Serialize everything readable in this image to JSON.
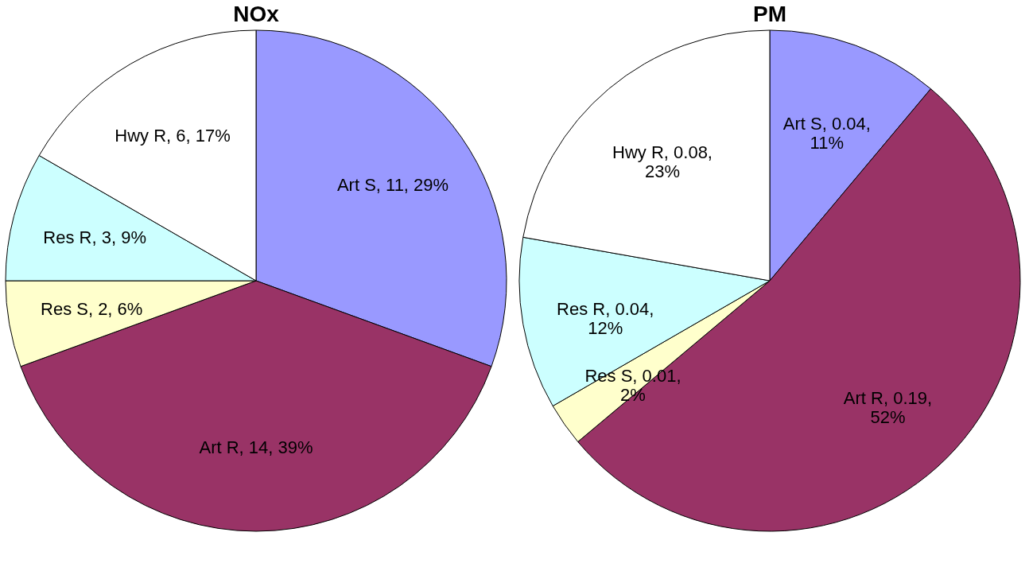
{
  "chart_data": [
    {
      "type": "pie",
      "title": "NOx",
      "categories": [
        "Art S",
        "Art R",
        "Res S",
        "Res R",
        "Hwy R"
      ],
      "values": [
        11,
        14,
        2,
        3,
        6
      ],
      "colors": [
        "#9999ff",
        "#993366",
        "#ffffcc",
        "#ccffff",
        "#ffffff"
      ],
      "value_labels": [
        "11, 29%",
        "14, 39%",
        "2, 6%",
        "3, 9%",
        "6, 17%"
      ],
      "legend": false
    },
    {
      "type": "pie",
      "title": "PM",
      "categories": [
        "Art S",
        "Art R",
        "Res S",
        "Res R",
        "Hwy R"
      ],
      "values": [
        0.04,
        0.19,
        0.01,
        0.04,
        0.08
      ],
      "colors": [
        "#9999ff",
        "#993366",
        "#ffffcc",
        "#ccffff",
        "#ffffff"
      ],
      "value_labels": [
        "0.04, 11%",
        "0.19, 52%",
        "0.01, 2%",
        "0.04, 12%",
        "0.08, 23%"
      ],
      "legend": false
    }
  ]
}
